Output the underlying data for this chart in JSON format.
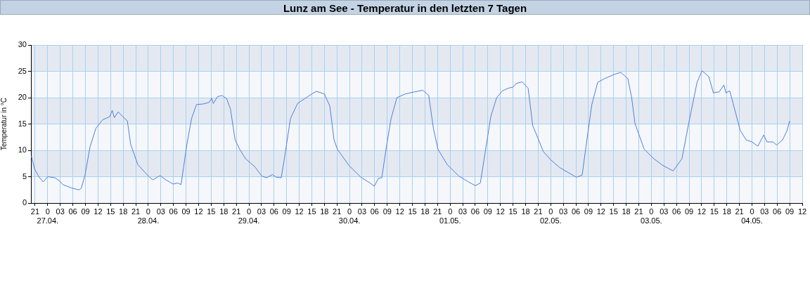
{
  "chart_data": {
    "type": "line",
    "title": "Lunz am See - Temperatur in den letzten 7 Tagen",
    "ylabel": "Temperatur in °C",
    "xlim": [
      "--04-26T20:00",
      "--05-04T12:00"
    ],
    "xticks": [
      {
        "value": "--04-26T21:00",
        "label": "21"
      },
      {
        "value": "--04-27T00:00",
        "label": "0\n27.04."
      },
      {
        "value": "--04-27T03:00",
        "label": "03"
      },
      {
        "value": "--04-27T06:00",
        "label": "06"
      },
      {
        "value": "--04-27T09:00",
        "label": "09"
      },
      {
        "value": "--04-27T12:00",
        "label": "12"
      },
      {
        "value": "--04-27T15:00",
        "label": "15"
      },
      {
        "value": "--04-27T18:00",
        "label": "18"
      },
      {
        "value": "--04-27T21:00",
        "label": "21"
      },
      {
        "value": "--04-28T00:00",
        "label": "0\n28.04."
      },
      {
        "value": "--04-28T03:00",
        "label": "03"
      },
      {
        "value": "--04-28T06:00",
        "label": "06"
      },
      {
        "value": "--04-28T09:00",
        "label": "09"
      },
      {
        "value": "--04-28T12:00",
        "label": "12"
      },
      {
        "value": "--04-28T15:00",
        "label": "15"
      },
      {
        "value": "--04-28T18:00",
        "label": "18"
      },
      {
        "value": "--04-28T21:00",
        "label": "21"
      },
      {
        "value": "--04-29T00:00",
        "label": "0\n29.04."
      },
      {
        "value": "--04-29T03:00",
        "label": "03"
      },
      {
        "value": "--04-29T06:00",
        "label": "06"
      },
      {
        "value": "--04-29T09:00",
        "label": "09"
      },
      {
        "value": "--04-29T12:00",
        "label": "12"
      },
      {
        "value": "--04-29T15:00",
        "label": "15"
      },
      {
        "value": "--04-29T18:00",
        "label": "18"
      },
      {
        "value": "--04-29T21:00",
        "label": "21"
      },
      {
        "value": "--04-30T00:00",
        "label": "0\n30.04."
      },
      {
        "value": "--04-30T03:00",
        "label": "03"
      },
      {
        "value": "--04-30T06:00",
        "label": "06"
      },
      {
        "value": "--04-30T09:00",
        "label": "09"
      },
      {
        "value": "--04-30T12:00",
        "label": "12"
      },
      {
        "value": "--04-30T15:00",
        "label": "15"
      },
      {
        "value": "--04-30T18:00",
        "label": "18"
      },
      {
        "value": "--04-30T21:00",
        "label": "21"
      },
      {
        "value": "--05-01T00:00",
        "label": "0\n01.05."
      },
      {
        "value": "--05-01T03:00",
        "label": "03"
      },
      {
        "value": "--05-01T06:00",
        "label": "06"
      },
      {
        "value": "--05-01T09:00",
        "label": "09"
      },
      {
        "value": "--05-01T12:00",
        "label": "12"
      },
      {
        "value": "--05-01T15:00",
        "label": "15"
      },
      {
        "value": "--05-01T18:00",
        "label": "18"
      },
      {
        "value": "--05-01T21:00",
        "label": "21"
      },
      {
        "value": "--05-02T00:00",
        "label": "0\n02.05."
      },
      {
        "value": "--05-02T03:00",
        "label": "03"
      },
      {
        "value": "--05-02T06:00",
        "label": "06"
      },
      {
        "value": "--05-02T09:00",
        "label": "09"
      },
      {
        "value": "--05-02T12:00",
        "label": "12"
      },
      {
        "value": "--05-02T15:00",
        "label": "15"
      },
      {
        "value": "--05-02T18:00",
        "label": "18"
      },
      {
        "value": "--05-02T21:00",
        "label": "21"
      },
      {
        "value": "--05-03T00:00",
        "label": "0\n03.05."
      },
      {
        "value": "--05-03T03:00",
        "label": "03"
      },
      {
        "value": "--05-03T06:00",
        "label": "06"
      },
      {
        "value": "--05-03T09:00",
        "label": "09"
      },
      {
        "value": "--05-03T12:00",
        "label": "12"
      },
      {
        "value": "--05-03T15:00",
        "label": "15"
      },
      {
        "value": "--05-03T18:00",
        "label": "18"
      },
      {
        "value": "--05-03T21:00",
        "label": "21"
      },
      {
        "value": "--05-04T00:00",
        "label": "0\n04.05."
      },
      {
        "value": "--05-04T03:00",
        "label": "03"
      },
      {
        "value": "--05-04T06:00",
        "label": "06"
      },
      {
        "value": "--05-04T09:00",
        "label": "09"
      },
      {
        "value": "--05-04T12:00",
        "label": "12"
      }
    ],
    "ylim": [
      0,
      30
    ],
    "yticks": [
      0,
      5,
      10,
      15,
      20,
      25,
      30
    ],
    "grid": true,
    "marker": "none",
    "line_style": "solid",
    "series": [
      {
        "color": "#4f7fe0",
        "x": [
          "--04-26T20:06",
          "--04-26T20:54",
          "--04-26T21:48",
          "--04-26T22:54",
          "--04-27T00:00",
          "--04-27T01:42",
          "--04-27T02:48",
          "--04-27T03:36",
          "--04-27T05:54",
          "--04-27T07:30",
          "--04-27T08:00",
          "--04-27T08:54",
          "--04-27T10:06",
          "--04-27T11:30",
          "--04-27T13:06",
          "--04-27T14:48",
          "--04-27T15:24",
          "--04-27T15:54",
          "--04-27T16:48",
          "--04-27T17:54",
          "--04-27T19:00",
          "--04-27T19:48",
          "--04-27T21:30",
          "--04-27T23:12",
          "--04-28T00:18",
          "--04-28T01:06",
          "--04-28T02:48",
          "--04-28T04:12",
          "--04-28T05:54",
          "--04-28T07:00",
          "--04-28T07:48",
          "--04-28T08:24",
          "--04-28T09:12",
          "--04-28T10:18",
          "--04-28T11:30",
          "--04-28T13:06",
          "--04-28T14:30",
          "--04-28T15:06",
          "--04-28T15:30",
          "--04-28T16:30",
          "--04-28T17:36",
          "--04-28T18:42",
          "--04-28T19:36",
          "--04-28T20:42",
          "--04-28T21:48",
          "--04-28T23:12",
          "--04-29T01:24",
          "--04-29T03:06",
          "--04-29T04:12",
          "--04-29T05:36",
          "--04-29T06:30",
          "--04-29T07:42",
          "--04-29T08:18",
          "--04-29T09:54",
          "--04-29T11:36",
          "--04-29T13:18",
          "--04-29T15:00",
          "--04-29T16:06",
          "--04-29T18:00",
          "--04-29T19:18",
          "--04-29T20:18",
          "--04-29T21:06",
          "--04-29T23:54",
          "--04-30T02:42",
          "--04-30T04:54",
          "--04-30T05:54",
          "--04-30T06:54",
          "--04-30T07:42",
          "--04-30T08:48",
          "--04-30T09:54",
          "--04-30T11:18",
          "--04-30T13:18",
          "--04-30T15:30",
          "--04-30T17:30",
          "--04-30T18:54",
          "--04-30T20:00",
          "--04-30T21:06",
          "--04-30T23:18",
          "--05-01T02:06",
          "--05-01T04:24",
          "--05-01T06:00",
          "--05-01T07:12",
          "--05-01T08:18",
          "--05-01T09:42",
          "--05-01T11:06",
          "--05-01T12:30",
          "--05-01T13:54",
          "--05-01T15:00",
          "--05-01T15:48",
          "--05-01T17:12",
          "--05-01T18:36",
          "--05-01T19:42",
          "--05-01T21:06",
          "--05-01T22:12",
          "--05-02T00:00",
          "--05-02T02:12",
          "--05-02T06:06",
          "--05-02T07:30",
          "--05-02T08:24",
          "--05-02T09:48",
          "--05-02T11:12",
          "--05-02T12:48",
          "--05-02T15:06",
          "--05-02T16:42",
          "--05-02T18:24",
          "--05-02T19:18",
          "--05-02T20:06",
          "--05-02T22:18",
          "--05-03T00:36",
          "--05-03T02:48",
          "--05-03T05:12",
          "--05-03T07:18",
          "--05-03T08:54",
          "--05-03T10:54",
          "--05-03T12:06",
          "--05-03T13:42",
          "--05-03T14:48",
          "--05-03T16:12",
          "--05-03T17:18",
          "--05-03T17:48",
          "--05-03T18:42",
          "--05-03T19:30",
          "--05-03T21:12",
          "--05-03T22:36",
          "--05-04T00:00",
          "--05-04T01:24",
          "--05-04T02:48",
          "--05-04T03:36",
          "--05-04T05:00",
          "--05-04T05:54",
          "--05-04T07:18",
          "--05-04T08:18",
          "--05-04T09:00"
        ],
        "values": [
          8.9,
          6.4,
          5.1,
          4.0,
          5.0,
          4.8,
          4.2,
          3.5,
          2.8,
          2.5,
          2.8,
          5.3,
          10.7,
          14.2,
          15.8,
          16.4,
          17.6,
          16.2,
          17.3,
          16.4,
          15.6,
          11.1,
          7.3,
          5.8,
          4.9,
          4.4,
          5.2,
          4.4,
          3.6,
          3.8,
          3.5,
          6.7,
          11.1,
          16.0,
          18.7,
          18.8,
          19.1,
          19.9,
          18.9,
          20.2,
          20.4,
          19.8,
          17.8,
          12.0,
          10.2,
          8.4,
          6.9,
          5.1,
          4.8,
          5.4,
          4.9,
          4.8,
          7.6,
          16.0,
          18.9,
          19.8,
          20.7,
          21.2,
          20.7,
          18.4,
          12.0,
          10.2,
          7.1,
          4.9,
          3.8,
          3.2,
          4.7,
          4.8,
          10.7,
          16.0,
          20.0,
          20.7,
          21.1,
          21.4,
          20.4,
          14.2,
          10.2,
          7.3,
          5.1,
          4.0,
          3.3,
          3.8,
          9.3,
          16.4,
          20.0,
          21.3,
          21.8,
          22.0,
          22.7,
          23.0,
          21.8,
          14.7,
          12.0,
          9.8,
          8.2,
          6.7,
          4.9,
          5.3,
          10.7,
          18.7,
          22.9,
          23.6,
          24.4,
          24.8,
          23.6,
          20.0,
          15.1,
          10.2,
          8.4,
          7.1,
          6.1,
          8.4,
          15.1,
          22.9,
          25.1,
          24.0,
          20.9,
          21.1,
          22.4,
          20.9,
          21.3,
          18.9,
          13.8,
          12.0,
          11.6,
          10.8,
          12.9,
          11.6,
          11.6,
          11.0,
          12.0,
          13.6,
          15.6
        ]
      }
    ]
  }
}
